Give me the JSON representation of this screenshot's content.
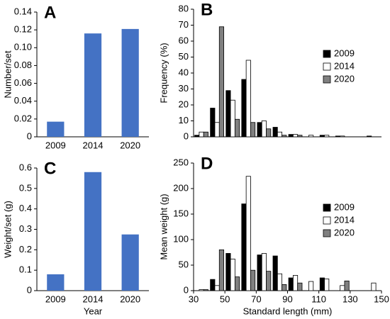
{
  "chart_data": [
    {
      "type": "bar",
      "panel": "A",
      "y_label": "Number/set",
      "categories": [
        "2009",
        "2014",
        "2020"
      ],
      "values": [
        0.017,
        0.116,
        0.121
      ],
      "color": "#4472c4",
      "ylim": [
        0,
        0.14
      ],
      "yticks": [
        0,
        0.02,
        0.04,
        0.06,
        0.08,
        {
          "value": 0.1,
          "label": "0.10"
        },
        0.12,
        0.14
      ]
    },
    {
      "type": "grouped_bar",
      "panel": "B",
      "y_label": "Frequency (%)",
      "x": [
        35,
        45,
        55,
        65,
        75,
        85,
        95,
        105,
        115,
        125,
        135,
        145
      ],
      "series": [
        {
          "name": "2009",
          "color": "#000000",
          "values": [
            1,
            18,
            29,
            36,
            9,
            6,
            1.5,
            0,
            1,
            0.5,
            0,
            0.5
          ]
        },
        {
          "name": "2014",
          "color": "#ffffff",
          "values": [
            3,
            9,
            23,
            48,
            10,
            3,
            1.5,
            1,
            1,
            0.5,
            0,
            0
          ]
        },
        {
          "name": "2020",
          "color": "#808080",
          "values": [
            3,
            69,
            11,
            9,
            5,
            1,
            1,
            0,
            0,
            0,
            0,
            0
          ]
        }
      ],
      "xlim": [
        30,
        150
      ],
      "ylim": [
        0,
        80
      ],
      "yticks": [
        0,
        10,
        20,
        30,
        40,
        50,
        60,
        70,
        80
      ],
      "legend": "right"
    },
    {
      "type": "bar",
      "panel": "C",
      "y_label": "Weight/set (g)",
      "x_label": "Year",
      "categories": [
        "2009",
        "2014",
        "2020"
      ],
      "values": [
        0.08,
        0.58,
        0.275
      ],
      "color": "#4472c4",
      "ylim": [
        0,
        0.6
      ],
      "yticks": [
        0,
        0.1,
        0.2,
        0.3,
        0.4,
        0.5,
        0.6
      ]
    },
    {
      "type": "grouped_bar",
      "panel": "D",
      "y_label": "Mean weight (g)",
      "x_label": "Standard length (mm)",
      "x": [
        35,
        45,
        55,
        65,
        75,
        85,
        95,
        105,
        115,
        125,
        135,
        145
      ],
      "series": [
        {
          "name": "2009",
          "color": "#000000",
          "values": [
            0,
            22,
            73,
            170,
            70,
            68,
            25,
            0,
            25,
            0,
            0,
            0
          ]
        },
        {
          "name": "2014",
          "color": "#ffffff",
          "values": [
            2,
            10,
            62,
            224,
            73,
            33,
            30,
            18,
            23,
            10,
            0,
            15
          ]
        },
        {
          "name": "2020",
          "color": "#808080",
          "values": [
            2,
            80,
            27,
            40,
            38,
            12,
            15,
            0,
            0,
            19,
            0,
            0
          ]
        }
      ],
      "xlim": [
        30,
        150
      ],
      "xticks": [
        30,
        50,
        70,
        90,
        110,
        130,
        150
      ],
      "ylim": [
        0,
        250
      ],
      "yticks": [
        0,
        50,
        100,
        150,
        200,
        250
      ],
      "legend": "right"
    }
  ]
}
